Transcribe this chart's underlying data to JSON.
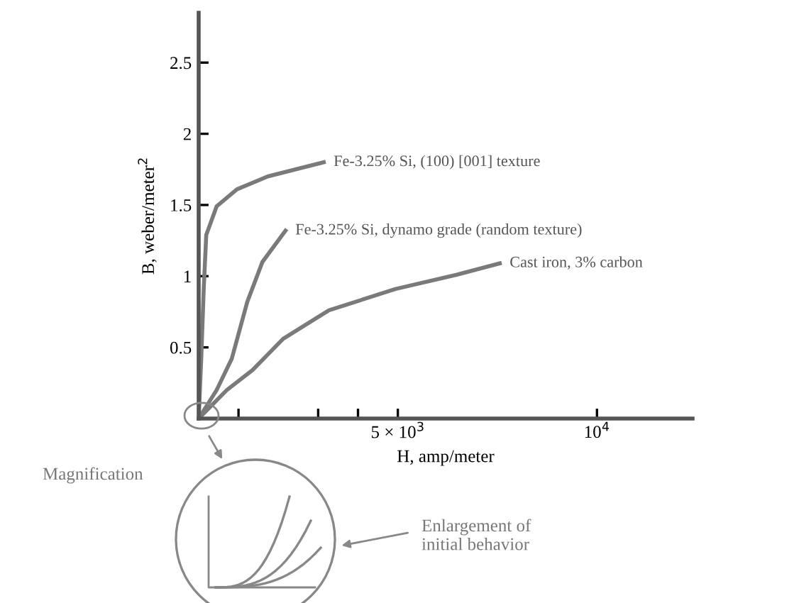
{
  "chart_data": {
    "type": "line",
    "xlabel": "H, amp/meter",
    "ylabel": "B, weber/meter$^{2}$",
    "xlim": [
      0,
      12400
    ],
    "ylim": [
      0,
      2.85
    ],
    "xticks": [
      {
        "value": 1000,
        "label": null
      },
      {
        "value": 3000,
        "label": null
      },
      {
        "value": 4000,
        "label": null
      },
      {
        "value": 5000,
        "label": "5 × 10$^{3}$"
      },
      {
        "value": 10000,
        "label": "10$^{4}$"
      }
    ],
    "yticks": [
      0.5,
      1,
      1.5,
      2,
      2.5
    ],
    "marker": "none",
    "line_style": "solid",
    "series": [
      {
        "name": "Fe-3.25% Si, (100) [001] texture",
        "color": "#7a7a7a",
        "x": [
          0,
          64,
          128,
          190,
          450,
          960,
          1730,
          3140
        ],
        "values": [
          0,
          0.42,
          0.92,
          1.29,
          1.49,
          1.61,
          1.7,
          1.8
        ]
      },
      {
        "name": "Fe-3.25% Si, dynamo grade (random texture)",
        "color": "#7a7a7a",
        "x": [
          0,
          450,
          830,
          1220,
          1600,
          2180
        ],
        "values": [
          0,
          0.2,
          0.42,
          0.82,
          1.1,
          1.32
        ]
      },
      {
        "name": "Cast iron, 3% carbon",
        "color": "#7a7a7a",
        "x": [
          0,
          705,
          1350,
          2120,
          3270,
          4940,
          6480,
          7560
        ],
        "values": [
          0,
          0.2,
          0.34,
          0.56,
          0.76,
          0.91,
          1.01,
          1.09
        ]
      }
    ],
    "annotations": [
      "Magnification",
      "Enlargement of\ninitial behavior"
    ]
  }
}
